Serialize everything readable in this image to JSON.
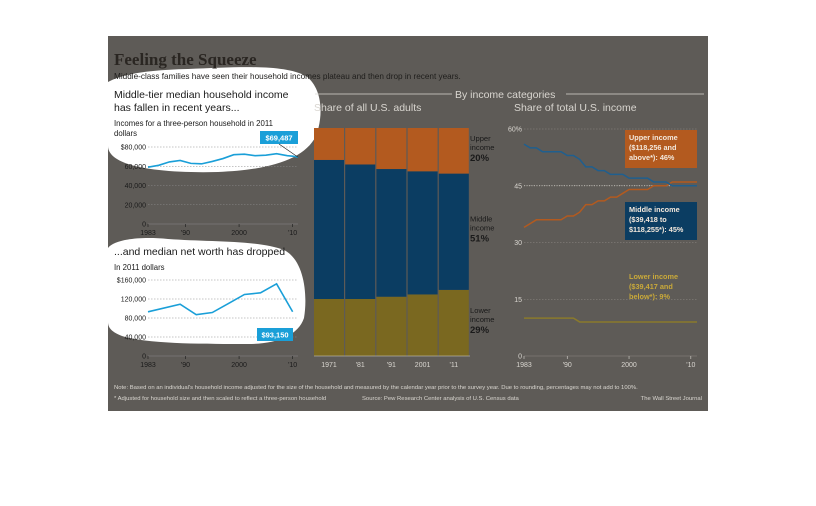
{
  "header": {
    "title": "Feeling the Squeeze",
    "subtitle": "Middle-class families have seen their household incomes plateau and then drop in recent years."
  },
  "colors": {
    "background": "#5e5b57",
    "highlight": "#ffffff",
    "line": "#1a9fd8",
    "upper": "#b35a1f",
    "middle": "#0b3d62",
    "lower": "#7a6820",
    "middle_line": "#1f5f8f",
    "lower_line": "#8a7a2c"
  },
  "categories_header": "By income categories",
  "chart_data": [
    {
      "type": "line",
      "name": "income",
      "title": "Middle-tier median household income",
      "title2": "has fallen in recent years...",
      "subtitle": "Incomes for a three-person household in 2011",
      "subtitle2": "dollars",
      "x": [
        1983,
        1985,
        1987,
        1989,
        1991,
        1993,
        1995,
        1997,
        1999,
        2001,
        2003,
        2005,
        2007,
        2009,
        2010,
        2011
      ],
      "values": [
        59000,
        61000,
        64500,
        66000,
        63000,
        62500,
        65000,
        68000,
        72000,
        72500,
        71000,
        71500,
        73000,
        71000,
        70500,
        69487
      ],
      "ylim": [
        0,
        80000
      ],
      "yticks": [
        "$80,000",
        "60,000",
        "40,000",
        "20,000",
        "0"
      ],
      "xticks": [
        "1983",
        "'90",
        "2000",
        "'10"
      ],
      "callout": "$69,487"
    },
    {
      "type": "line",
      "name": "networth",
      "title": "...and median net worth has dropped",
      "subtitle": "In 2011 dollars",
      "x": [
        1983,
        1989,
        1992,
        1995,
        1998,
        2001,
        2004,
        2007,
        2010
      ],
      "values": [
        93000,
        109000,
        87000,
        91500,
        110500,
        129500,
        133000,
        152000,
        93150
      ],
      "ylim": [
        0,
        160000
      ],
      "yticks": [
        "$160,000",
        "120,000",
        "80,000",
        "40,000",
        "0"
      ],
      "xticks": [
        "1983",
        "'90",
        "2000",
        "'10"
      ],
      "callout": "$93,150"
    },
    {
      "type": "bar",
      "name": "adults",
      "title": "Share of all U.S. adults",
      "categories": [
        "1971",
        "1981",
        "1991",
        "2001",
        "2011"
      ],
      "xticks": [
        "1971",
        "'81",
        "'91",
        "2001",
        "'11"
      ],
      "series": [
        {
          "name": "Lower income",
          "values": [
            25,
            25,
            26,
            27,
            29
          ]
        },
        {
          "name": "Middle income",
          "values": [
            61,
            59,
            56,
            54,
            51
          ]
        },
        {
          "name": "Upper income",
          "values": [
            14,
            16,
            18,
            19,
            20
          ]
        }
      ],
      "labels": [
        {
          "lines": [
            "Upper",
            "income"
          ],
          "pct": "20%"
        },
        {
          "lines": [
            "Middle",
            "income"
          ],
          "pct": "51%"
        },
        {
          "lines": [
            "Lower",
            "income"
          ],
          "pct": "29%"
        }
      ],
      "ylim": [
        0,
        100
      ]
    },
    {
      "type": "line",
      "name": "share",
      "title": "Share of total U.S. income",
      "x": [
        1983,
        1984,
        1985,
        1986,
        1987,
        1988,
        1989,
        1990,
        1991,
        1992,
        1993,
        1994,
        1995,
        1996,
        1997,
        1998,
        1999,
        2000,
        2001,
        2002,
        2003,
        2004,
        2005,
        2006,
        2007,
        2008,
        2009,
        2010,
        2011
      ],
      "series": [
        {
          "name": "Upper",
          "values": [
            34,
            35,
            36,
            36,
            36,
            36,
            36,
            37,
            37,
            38,
            40,
            40,
            41,
            41,
            42,
            42,
            43,
            44,
            44,
            44,
            44,
            45,
            45,
            45,
            46,
            46,
            46,
            46,
            46
          ]
        },
        {
          "name": "Middle",
          "values": [
            56,
            55,
            55,
            54,
            54,
            54,
            54,
            53,
            53,
            52,
            50,
            50,
            49,
            49,
            48,
            48,
            48,
            47,
            47,
            47,
            47,
            46,
            46,
            46,
            45,
            45,
            45,
            45,
            45
          ]
        },
        {
          "name": "Lower",
          "values": [
            10,
            10,
            10,
            10,
            10,
            10,
            10,
            10,
            10,
            9,
            9,
            9,
            9,
            9,
            9,
            9,
            9,
            9,
            9,
            9,
            9,
            9,
            9,
            9,
            9,
            9,
            9,
            9,
            9
          ]
        }
      ],
      "ylim": [
        0,
        60
      ],
      "yticks": [
        "60%",
        "45",
        "30",
        "15",
        "0"
      ],
      "xticks": [
        "1983",
        "'90",
        "2000",
        "'10"
      ],
      "annotations": {
        "upper": [
          "Upper income",
          "($118,256 and",
          "above*): 46%"
        ],
        "middle": [
          "Middle income",
          "($39,418 to",
          "$118,255*): 45%"
        ],
        "lower": [
          "Lower income",
          "($39,417 and",
          "below*): 9%"
        ]
      }
    }
  ],
  "footer": {
    "note": "Note: Based on an individual's household income adjusted for the size of the household and measured by the calendar year prior to the survey year. Due to rounding, percentages may not add to 100%.",
    "asterisk": "* Adjusted for household size and then scaled to reflect a three-person household",
    "source": "Source: Pew Research Center analysis of U.S. Census data",
    "credit": "The Wall Street Journal"
  }
}
